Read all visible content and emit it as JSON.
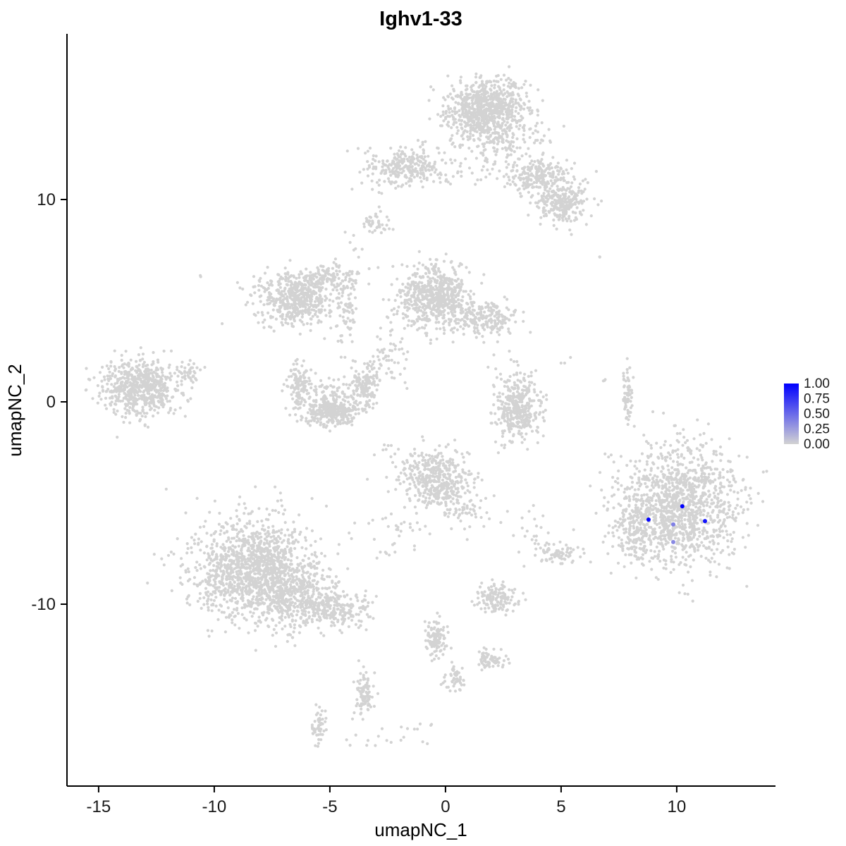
{
  "chart_data": {
    "type": "scatter",
    "title": "Ighv1-33",
    "xlabel": "umapNC_1",
    "ylabel": "umapNC_2",
    "xlim": [
      -16.37,
      14.27
    ],
    "ylim": [
      -18.99,
      18.19
    ],
    "x_ticks": [
      -15,
      -10,
      -5,
      0,
      5,
      10
    ],
    "y_ticks": [
      -10,
      0,
      10
    ],
    "grid": false,
    "point_color_low": "#D3D3D3",
    "point_color_high": "#0000FF",
    "background_clusters": [
      {
        "x": -13.26,
        "y": 0.77,
        "sx": 0.8,
        "sy": 0.7,
        "n": 620
      },
      {
        "x": -11.1,
        "y": 1.5,
        "sx": 0.28,
        "sy": 0.3,
        "n": 40
      },
      {
        "x": 1.8,
        "y": 14.4,
        "sx": 0.85,
        "sy": 0.75,
        "n": 800
      },
      {
        "x": 2.2,
        "y": 12.8,
        "sx": 1.2,
        "sy": 1.0,
        "n": 180
      },
      {
        "x": -1.74,
        "y": 11.6,
        "sx": 0.9,
        "sy": 0.45,
        "n": 280
      },
      {
        "x": -3.0,
        "y": 8.8,
        "sx": 0.35,
        "sy": 0.3,
        "n": 40
      },
      {
        "x": 4.05,
        "y": 11.15,
        "sx": 0.75,
        "sy": 0.5,
        "n": 220
      },
      {
        "x": 5.06,
        "y": 9.83,
        "sx": 0.55,
        "sy": 0.5,
        "n": 250
      },
      {
        "x": -6.4,
        "y": 5.12,
        "sx": 0.85,
        "sy": 0.65,
        "n": 560
      },
      {
        "x": -4.9,
        "y": 6.2,
        "sx": 0.5,
        "sy": 0.3,
        "n": 80
      },
      {
        "x": -4.27,
        "y": 4.5,
        "sx": 0.22,
        "sy": 1.0,
        "n": 70
      },
      {
        "x": -0.46,
        "y": 5.16,
        "sx": 0.8,
        "sy": 0.8,
        "n": 640
      },
      {
        "x": 1.77,
        "y": 4.18,
        "sx": 0.6,
        "sy": 0.4,
        "n": 200
      },
      {
        "x": -2.65,
        "y": 2.26,
        "sx": 0.5,
        "sy": 0.7,
        "n": 55
      },
      {
        "x": -3.8,
        "y": 7.6,
        "sx": 0.6,
        "sy": 0.6,
        "n": 12
      },
      {
        "x": -6.25,
        "y": 0.77,
        "sx": 0.3,
        "sy": 0.5,
        "n": 130
      },
      {
        "x": -4.94,
        "y": -0.52,
        "sx": 0.7,
        "sy": 0.35,
        "n": 320
      },
      {
        "x": -3.48,
        "y": 0.87,
        "sx": 0.28,
        "sy": 0.5,
        "n": 140
      },
      {
        "x": -4.9,
        "y": 0.3,
        "sx": 0.5,
        "sy": 0.35,
        "n": 60
      },
      {
        "x": 7.87,
        "y": 0.28,
        "sx": 0.12,
        "sy": 0.55,
        "n": 60
      },
      {
        "x": 3.14,
        "y": -0.28,
        "sx": 0.5,
        "sy": 0.8,
        "n": 380
      },
      {
        "x": -0.43,
        "y": -3.83,
        "sx": 0.75,
        "sy": 0.7,
        "n": 430
      },
      {
        "x": 0.85,
        "y": -5.4,
        "sx": 0.45,
        "sy": 0.55,
        "n": 60
      },
      {
        "x": -2.0,
        "y": -6.5,
        "sx": 0.7,
        "sy": 0.9,
        "n": 35
      },
      {
        "x": -8.4,
        "y": -8.2,
        "sx": 1.3,
        "sy": 1.2,
        "n": 1300
      },
      {
        "x": -6.6,
        "y": -9.6,
        "sx": 1.0,
        "sy": 0.7,
        "n": 400
      },
      {
        "x": -4.88,
        "y": -10.28,
        "sx": 0.8,
        "sy": 0.45,
        "n": 220
      },
      {
        "x": 10.2,
        "y": -5.1,
        "sx": 1.3,
        "sy": 1.5,
        "n": 1250
      },
      {
        "x": 8.3,
        "y": -6.2,
        "sx": 0.55,
        "sy": 0.9,
        "n": 200
      },
      {
        "x": 2.23,
        "y": -9.69,
        "sx": 0.45,
        "sy": 0.35,
        "n": 140
      },
      {
        "x": -0.43,
        "y": -11.67,
        "sx": 0.25,
        "sy": 0.55,
        "n": 110
      },
      {
        "x": 1.98,
        "y": -12.79,
        "sx": 0.3,
        "sy": 0.25,
        "n": 70
      },
      {
        "x": 0.4,
        "y": -13.66,
        "sx": 0.22,
        "sy": 0.3,
        "n": 50
      },
      {
        "x": -3.51,
        "y": -14.46,
        "sx": 0.18,
        "sy": 0.6,
        "n": 90
      },
      {
        "x": -5.49,
        "y": -15.96,
        "sx": 0.15,
        "sy": 0.4,
        "n": 50
      },
      {
        "x": -2.2,
        "y": -16.4,
        "sx": 1.4,
        "sy": 0.35,
        "n": 22
      },
      {
        "x": 4.82,
        "y": -7.49,
        "sx": 0.4,
        "sy": 0.25,
        "n": 70
      },
      {
        "x": 3.44,
        "y": -6.45,
        "sx": 0.5,
        "sy": 0.6,
        "n": 22
      },
      {
        "x": -10.58,
        "y": 6.27,
        "sx": 0.05,
        "sy": 0.05,
        "n": 2
      },
      {
        "x": 6.65,
        "y": 7.21,
        "sx": 0.05,
        "sy": 0.05,
        "n": 2
      },
      {
        "x": 6.86,
        "y": 1.05,
        "sx": 0.06,
        "sy": 0.06,
        "n": 3
      },
      {
        "x": -2.8,
        "y": -2.44,
        "sx": 0.3,
        "sy": 0.3,
        "n": 8
      },
      {
        "x": 5.1,
        "y": 2.0,
        "sx": 0.15,
        "sy": 0.15,
        "n": 3
      }
    ],
    "highlighted_points": [
      {
        "x": 8.78,
        "y": -5.82,
        "value": 1.0
      },
      {
        "x": 10.24,
        "y": -5.16,
        "value": 1.0
      },
      {
        "x": 11.22,
        "y": -5.89,
        "value": 0.9
      },
      {
        "x": 9.85,
        "y": -6.06,
        "value": 0.4
      },
      {
        "x": 9.85,
        "y": -6.93,
        "value": 0.35
      }
    ],
    "legend": {
      "position": "right",
      "ticks": [
        "1.00",
        "0.75",
        "0.50",
        "0.25",
        "0.00"
      ]
    }
  }
}
